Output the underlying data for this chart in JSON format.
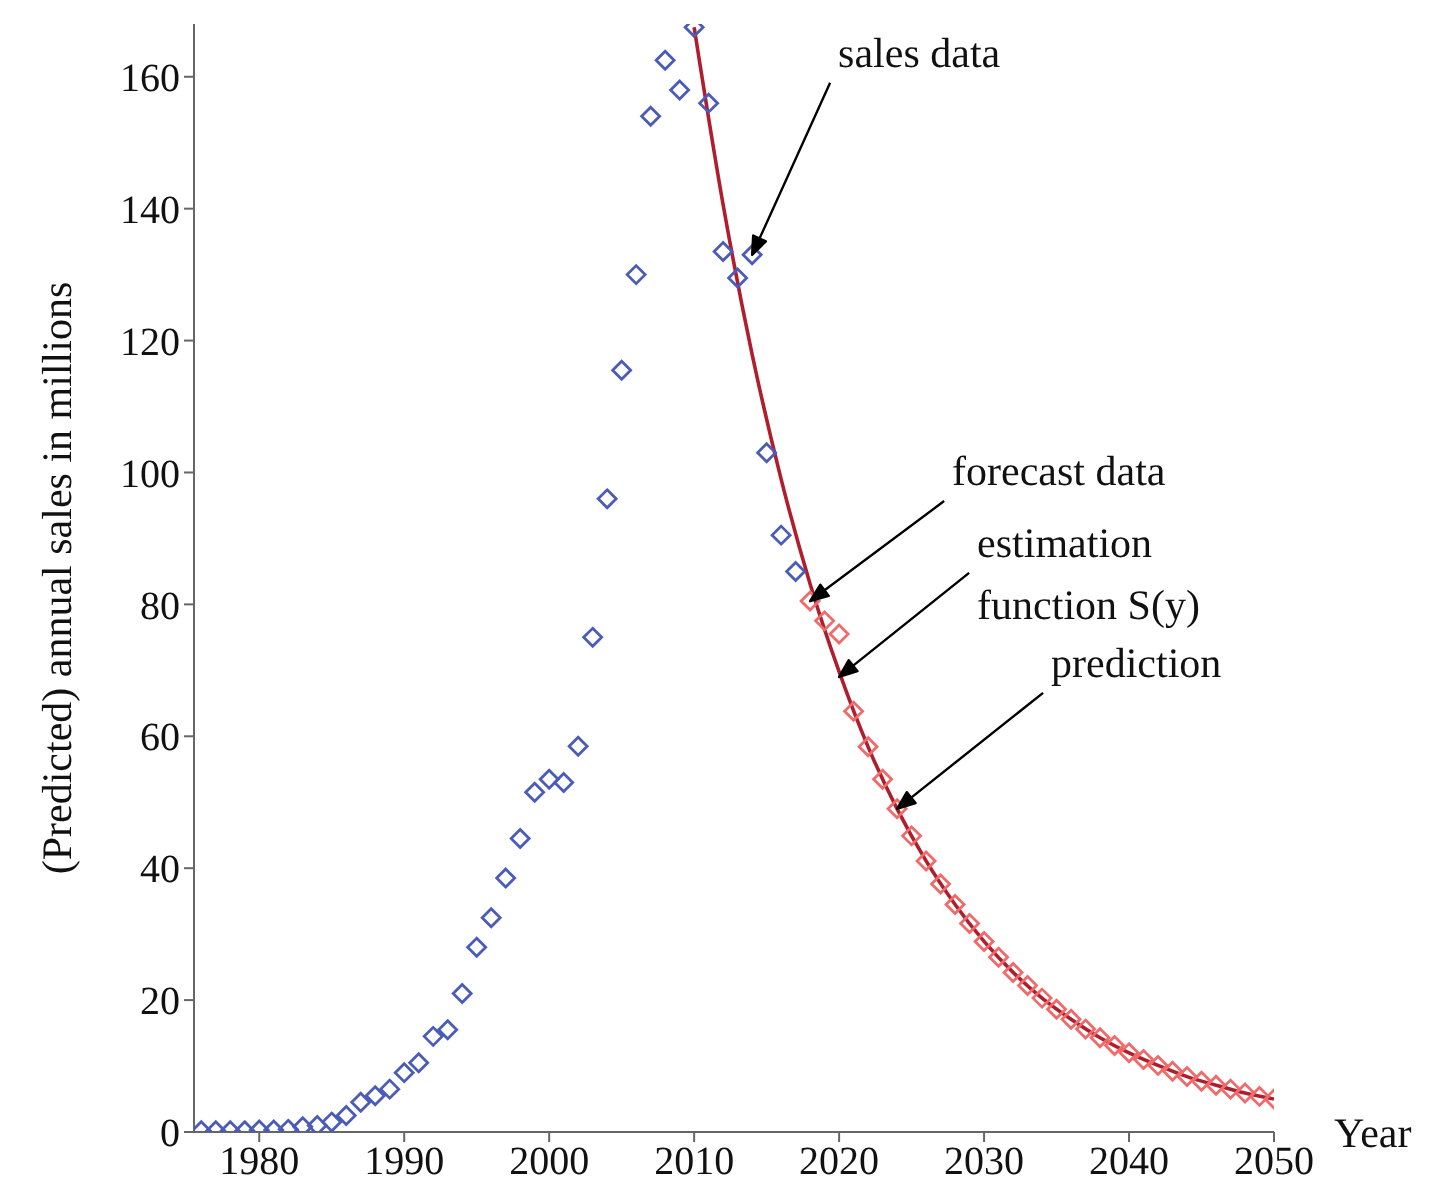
{
  "chart_data": {
    "type": "scatter",
    "xlabel": "Year",
    "ylabel": "(Predicted) annual sales in millions",
    "xlim": [
      1975.5,
      2050
    ],
    "xticks": [
      1980,
      1990,
      2000,
      2010,
      2020,
      2030,
      2040,
      2050
    ],
    "ylim": [
      0,
      168
    ],
    "yticks": [
      0,
      20,
      40,
      60,
      80,
      100,
      120,
      140,
      160
    ],
    "grid": false,
    "legend": false,
    "marker": "diamond",
    "series": [
      {
        "type": "scatter",
        "color": "#4a5cb8",
        "x": [
          1976,
          1977,
          1978,
          1979,
          1980,
          1981,
          1982,
          1983,
          1984,
          1985,
          1986,
          1987,
          1988,
          1989,
          1990,
          1991,
          1992,
          1993,
          1994,
          1995,
          1996,
          1997,
          1998,
          1999,
          2000,
          2001,
          2002,
          2003,
          2004,
          2005,
          2006,
          2007,
          2008,
          2009,
          2010,
          2011,
          2012,
          2013,
          2014,
          2015,
          2016,
          2017
        ],
        "values": [
          0.2,
          0.2,
          0.2,
          0.2,
          0.3,
          0.3,
          0.4,
          0.8,
          1,
          1.5,
          2.5,
          4.5,
          5.5,
          6.5,
          9,
          10.5,
          14.5,
          15.5,
          21,
          28,
          32.5,
          38.5,
          44.5,
          51.5,
          53.5,
          53,
          58.5,
          75,
          96,
          115.5,
          130,
          154,
          162.5,
          158,
          167.5,
          156,
          133.5,
          129.5,
          133,
          103,
          90.5,
          85
        ]
      },
      {
        "type": "scatter",
        "color": "#f06a6a",
        "x": [
          2018,
          2019,
          2020,
          2021,
          2022,
          2023,
          2024,
          2025,
          2026,
          2027,
          2028,
          2029,
          2030,
          2031,
          2032,
          2033,
          2034,
          2035,
          2036,
          2037,
          2038,
          2039,
          2040,
          2041,
          2042,
          2043,
          2044,
          2045,
          2046,
          2047,
          2048,
          2049,
          2050
        ],
        "values": [
          80.5,
          77.5,
          75.5,
          63.8,
          58.4,
          53.5,
          49,
          44.9,
          41.1,
          37.6,
          34.5,
          31.6,
          28.9,
          26.5,
          24.2,
          22.2,
          20.3,
          18.6,
          17.1,
          15.6,
          14.3,
          13.1,
          12,
          11,
          10.1,
          9.2,
          8.4,
          7.7,
          7.1,
          6.5,
          5.9,
          5.4,
          5
        ]
      },
      {
        "type": "line",
        "color": "#b01e2e",
        "marker": "none",
        "line_style": "solid",
        "x": [
          2010,
          2012,
          2014,
          2016,
          2018,
          2020,
          2022,
          2024,
          2026,
          2028,
          2030,
          2032,
          2034,
          2036,
          2038,
          2040,
          2042,
          2044,
          2046,
          2048,
          2050
        ],
        "values": [
          167.5,
          140.6,
          117.9,
          99,
          83.1,
          69.8,
          58.4,
          49,
          41.1,
          34.5,
          28.9,
          24.2,
          20.3,
          17.1,
          14.3,
          12,
          10.1,
          8.4,
          7.1,
          5.9,
          5
        ]
      }
    ],
    "annotations": [
      {
        "text": "sales data",
        "x": 2014,
        "y": 133
      },
      {
        "text": "forecast data",
        "x": 2018,
        "y": 80.5
      },
      {
        "text": "estimation function S(y)",
        "x": 2020,
        "y": 69
      },
      {
        "text": "prediction",
        "x": 2024,
        "y": 49
      }
    ]
  }
}
